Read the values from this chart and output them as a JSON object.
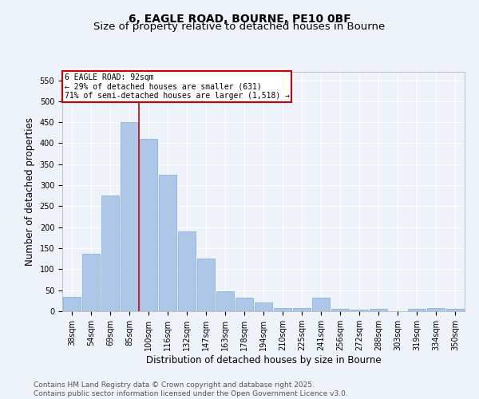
{
  "title_line1": "6, EAGLE ROAD, BOURNE, PE10 0BF",
  "title_line2": "Size of property relative to detached houses in Bourne",
  "xlabel": "Distribution of detached houses by size in Bourne",
  "ylabel": "Number of detached properties",
  "categories": [
    "38sqm",
    "54sqm",
    "69sqm",
    "85sqm",
    "100sqm",
    "116sqm",
    "132sqm",
    "147sqm",
    "163sqm",
    "178sqm",
    "194sqm",
    "210sqm",
    "225sqm",
    "241sqm",
    "256sqm",
    "272sqm",
    "288sqm",
    "303sqm",
    "319sqm",
    "334sqm",
    "350sqm"
  ],
  "values": [
    35,
    137,
    275,
    450,
    410,
    325,
    190,
    125,
    47,
    32,
    20,
    7,
    8,
    32,
    5,
    3,
    5,
    0,
    5,
    7,
    5
  ],
  "bar_color": "#aec6e8",
  "bar_edge_color": "#7aafd4",
  "annotation_title": "6 EAGLE ROAD: 92sqm",
  "annotation_line2": "← 29% of detached houses are smaller (631)",
  "annotation_line3": "71% of semi-detached houses are larger (1,518) →",
  "annotation_box_color": "#ffffff",
  "annotation_box_edge_color": "#cc0000",
  "vline_color": "#cc0000",
  "vline_x": 3.5,
  "ylim": [
    0,
    570
  ],
  "yticks": [
    0,
    50,
    100,
    150,
    200,
    250,
    300,
    350,
    400,
    450,
    500,
    550
  ],
  "footer_line1": "Contains HM Land Registry data © Crown copyright and database right 2025.",
  "footer_line2": "Contains public sector information licensed under the Open Government Licence v3.0.",
  "bg_color": "#eef2f9",
  "grid_color": "#ffffff",
  "title_fontsize": 10,
  "subtitle_fontsize": 9.5,
  "axis_label_fontsize": 8.5,
  "tick_fontsize": 7,
  "footer_fontsize": 6.5,
  "ann_fontsize": 7
}
